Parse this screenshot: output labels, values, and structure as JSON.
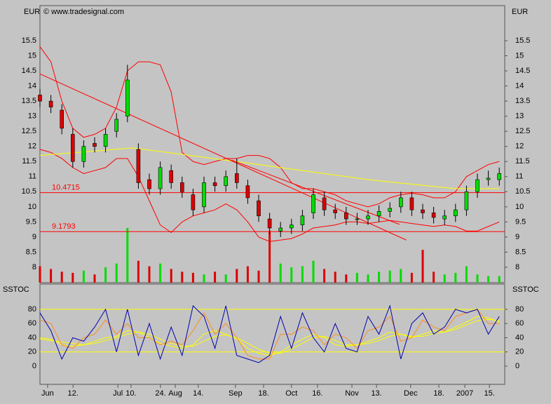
{
  "chart_data": [
    {
      "type": "candlestick",
      "currency_left": "EUR",
      "currency_right": "EUR",
      "copyright": "© www.tradesignal.com",
      "x": [
        0,
        4,
        8,
        12,
        16,
        20,
        24,
        28,
        32,
        36,
        40,
        44,
        48,
        52,
        56,
        60,
        64,
        68,
        72,
        76,
        80,
        84,
        88,
        92,
        96,
        100,
        104,
        108,
        112,
        116,
        120,
        124,
        128,
        132,
        136,
        140,
        144,
        148,
        152,
        156,
        160,
        164,
        168
      ],
      "open": [
        13.7,
        13.5,
        13.2,
        12.4,
        11.5,
        12.1,
        12.0,
        12.5,
        13.0,
        11.9,
        10.9,
        10.6,
        11.2,
        10.8,
        10.4,
        10.0,
        10.8,
        10.7,
        11.1,
        10.7,
        10.2,
        9.6,
        9.2,
        9.3,
        9.4,
        9.8,
        10.3,
        9.9,
        9.8,
        9.6,
        9.6,
        9.7,
        9.85,
        10.0,
        10.3,
        9.9,
        9.8,
        9.6,
        9.7,
        9.9,
        10.5,
        10.9,
        10.9
      ],
      "high": [
        13.9,
        13.7,
        13.4,
        12.6,
        12.2,
        12.3,
        12.6,
        13.1,
        14.7,
        12.1,
        11.1,
        11.5,
        11.4,
        11.0,
        10.6,
        11.0,
        11.0,
        11.2,
        11.6,
        10.9,
        10.4,
        9.8,
        9.5,
        9.6,
        9.9,
        10.6,
        10.5,
        10.1,
        10.0,
        9.8,
        9.9,
        10.05,
        10.15,
        10.5,
        10.5,
        10.1,
        10.0,
        9.9,
        10.1,
        10.7,
        11.1,
        11.2,
        11.3
      ],
      "low": [
        13.3,
        13.1,
        12.4,
        11.3,
        11.3,
        11.8,
        11.8,
        12.3,
        12.8,
        10.6,
        10.4,
        10.4,
        10.6,
        10.3,
        9.7,
        9.8,
        10.5,
        10.5,
        10.6,
        10.1,
        9.5,
        9.1,
        9.0,
        9.1,
        9.2,
        9.6,
        9.7,
        9.6,
        9.4,
        9.4,
        9.4,
        9.5,
        9.65,
        9.8,
        9.7,
        9.6,
        9.45,
        9.4,
        9.5,
        9.7,
        10.3,
        10.7,
        10.7
      ],
      "close": [
        13.5,
        13.3,
        12.6,
        11.5,
        12.0,
        12.0,
        12.4,
        12.9,
        14.2,
        10.8,
        10.6,
        11.3,
        10.8,
        10.5,
        9.9,
        10.8,
        10.7,
        11.0,
        10.8,
        10.3,
        9.7,
        9.3,
        9.3,
        9.4,
        9.7,
        10.4,
        9.9,
        9.8,
        9.6,
        9.6,
        9.7,
        9.85,
        9.95,
        10.3,
        9.9,
        9.8,
        9.65,
        9.7,
        9.9,
        10.5,
        10.9,
        10.95,
        11.1
      ],
      "up_color": "#00dd00",
      "down_color": "#dd0000",
      "volume": [
        30,
        25,
        20,
        18,
        22,
        15,
        28,
        35,
        100,
        40,
        30,
        35,
        25,
        20,
        18,
        15,
        20,
        15,
        25,
        30,
        22,
        95,
        35,
        28,
        30,
        40,
        25,
        20,
        15,
        18,
        15,
        20,
        22,
        25,
        18,
        60,
        20,
        15,
        18,
        30,
        15,
        12,
        12
      ],
      "bands": [
        {
          "color": "#ff0000",
          "values": [
            15.3,
            14.8,
            13.5,
            12.6,
            12.3,
            12.4,
            12.6,
            13.3,
            14.5,
            14.8,
            14.8,
            14.7,
            13.8,
            11.8,
            11.5,
            11.4,
            11.5,
            11.6,
            11.6,
            11.7,
            11.7,
            11.6,
            11.3,
            10.8,
            10.6,
            10.6,
            10.5,
            10.4,
            10.2,
            10.1,
            10.0,
            10.1,
            10.3,
            10.4,
            10.45,
            10.4,
            10.3,
            10.3,
            10.5,
            11.0,
            11.2,
            11.4,
            11.5
          ]
        },
        {
          "color": "#ff0000",
          "values": [
            11.9,
            11.8,
            11.6,
            11.3,
            11.1,
            11.2,
            11.3,
            11.6,
            11.6,
            11.0,
            10.2,
            9.4,
            9.15,
            9.5,
            9.7,
            9.8,
            9.9,
            10.1,
            9.9,
            9.5,
            9.0,
            8.85,
            8.9,
            8.95,
            9.1,
            9.3,
            9.35,
            9.4,
            9.5,
            9.5,
            9.45,
            9.5,
            9.55,
            9.5,
            9.45,
            9.4,
            9.35,
            9.4,
            9.35,
            9.2,
            9.2,
            9.35,
            9.5
          ]
        }
      ],
      "average": {
        "color": "#ffff00",
        "x": [
          0,
          34,
          80,
          120,
          152,
          168
        ],
        "values": [
          11.7,
          11.95,
          11.4,
          10.9,
          10.6,
          10.6
        ]
      },
      "trendlines": [
        {
          "color": "#ff0000",
          "x": [
            0,
            134
          ],
          "values": [
            14.4,
            8.9
          ]
        },
        {
          "color": "#ff0000",
          "x": [
            70,
            131.5
          ],
          "values": [
            11.55,
            9.42
          ]
        }
      ],
      "hlines": [
        10.4715,
        9.1793
      ],
      "hline_color": "#ff0000",
      "xlim": [
        0,
        170
      ],
      "xticks": [
        {
          "value": 2.8,
          "label": "Jun"
        },
        {
          "value": 12.1,
          "label": "12."
        },
        {
          "value": 28.5,
          "label": "Jul"
        },
        {
          "value": 33.3,
          "label": "10."
        },
        {
          "value": 44.1,
          "label": "24."
        },
        {
          "value": 49.5,
          "label": "Aug"
        },
        {
          "value": 57.9,
          "label": "14."
        },
        {
          "value": 71.5,
          "label": "Sep"
        },
        {
          "value": 81.8,
          "label": "18."
        },
        {
          "value": 92.0,
          "label": "Oct"
        },
        {
          "value": 101.5,
          "label": "16."
        },
        {
          "value": 114.1,
          "label": "Nov"
        },
        {
          "value": 123.1,
          "label": "13."
        },
        {
          "value": 135.6,
          "label": "Dec"
        },
        {
          "value": 145.9,
          "label": "18."
        },
        {
          "value": 155.4,
          "label": "2007"
        },
        {
          "value": 164.4,
          "label": "15."
        }
      ],
      "ylim": [
        7.49,
        16.66
      ],
      "yticks": [
        8,
        8.5,
        9,
        9.5,
        10,
        10.5,
        11,
        11.5,
        12,
        12.5,
        13,
        13.5,
        14,
        14.5,
        15,
        15.5
      ]
    },
    {
      "type": "line",
      "label_left": "SSTOC",
      "label_right": "SSTOC",
      "x": [
        0,
        4,
        8,
        12,
        16,
        20,
        24,
        28,
        32,
        36,
        40,
        44,
        48,
        52,
        56,
        60,
        64,
        68,
        72,
        76,
        80,
        84,
        88,
        92,
        96,
        100,
        104,
        108,
        112,
        116,
        120,
        124,
        128,
        132,
        136,
        140,
        144,
        148,
        152,
        156,
        160,
        164,
        168
      ],
      "series": [
        {
          "color": "#ffff00",
          "values": [
            40,
            38,
            30,
            28,
            30,
            35,
            40,
            42,
            50,
            48,
            40,
            32,
            28,
            25,
            30,
            45,
            50,
            45,
            38,
            25,
            18,
            15,
            20,
            30,
            38,
            45,
            40,
            30,
            28,
            30,
            35,
            40,
            48,
            45,
            40,
            45,
            50,
            48,
            55,
            62,
            70,
            68,
            62
          ]
        },
        {
          "color": "#ffff00",
          "values": [
            38,
            36,
            34,
            32,
            30,
            32,
            36,
            40,
            45,
            48,
            45,
            38,
            32,
            28,
            28,
            35,
            42,
            44,
            40,
            32,
            24,
            18,
            18,
            24,
            32,
            40,
            42,
            36,
            30,
            30,
            32,
            36,
            42,
            45,
            42,
            42,
            46,
            48,
            52,
            58,
            64,
            66,
            64
          ]
        },
        {
          "color": "#ff8c1a",
          "values": [
            65,
            60,
            30,
            25,
            40,
            45,
            65,
            45,
            60,
            40,
            40,
            30,
            35,
            30,
            50,
            75,
            45,
            60,
            40,
            15,
            10,
            10,
            45,
            45,
            55,
            50,
            30,
            45,
            40,
            25,
            50,
            55,
            70,
            35,
            40,
            65,
            55,
            50,
            70,
            75,
            80,
            60,
            60
          ]
        },
        {
          "color": "#0000aa",
          "values": [
            75,
            50,
            10,
            40,
            35,
            55,
            80,
            20,
            80,
            15,
            60,
            10,
            55,
            15,
            85,
            70,
            25,
            85,
            15,
            10,
            5,
            15,
            70,
            25,
            75,
            40,
            20,
            60,
            25,
            20,
            70,
            45,
            85,
            10,
            60,
            75,
            45,
            55,
            80,
            75,
            80,
            45,
            70
          ]
        }
      ],
      "levels": [
        20,
        80
      ],
      "level_color": "#ffff00",
      "xlim": [
        0,
        170
      ],
      "ylim": [
        -25.7,
        115.6
      ],
      "yticks": [
        0,
        20,
        40,
        60,
        80
      ]
    }
  ]
}
